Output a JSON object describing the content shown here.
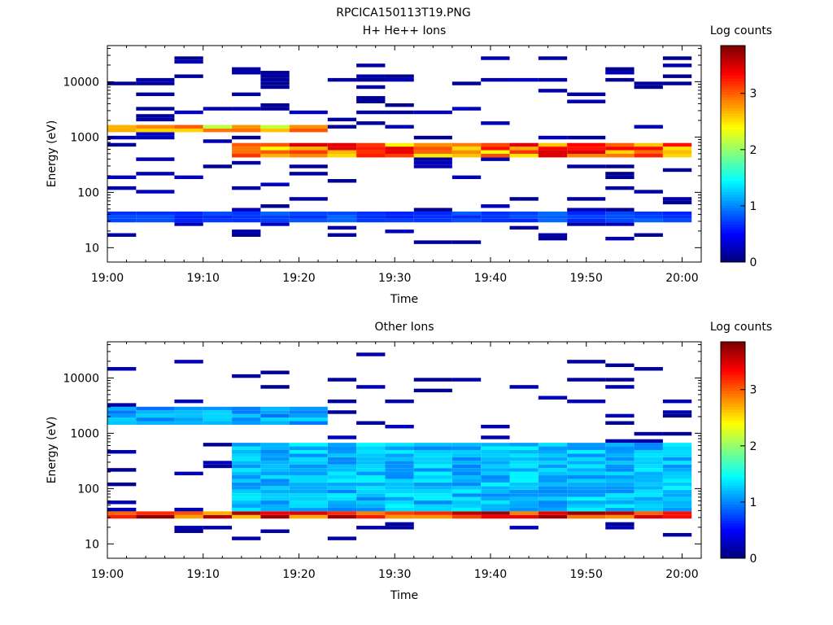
{
  "figure_title": "RPCICA150113T19.PNG",
  "chart_data": [
    {
      "type": "heatmap",
      "title": "H+ He++ Ions",
      "xlabel": "Time",
      "ylabel": "Energy (eV)",
      "x_ticks": [
        "19:00",
        "19:10",
        "19:20",
        "19:30",
        "19:40",
        "19:50",
        "20:00"
      ],
      "x_range": [
        "19:00",
        "20:02"
      ],
      "y_scale": "log",
      "y_ticks": [
        10,
        100,
        1000,
        10000
      ],
      "y_tick_labels": [
        "10",
        "100",
        "1000",
        "10000"
      ],
      "ylim": [
        5.5,
        45000
      ],
      "colorbar": {
        "label": "Log counts",
        "range": [
          0,
          3.85
        ],
        "ticks": [
          0,
          1,
          2,
          3
        ],
        "tick_labels": [
          "0",
          "1",
          "2",
          "3"
        ]
      },
      "time_bins": [
        "19:00",
        "19:03",
        "19:07",
        "19:10",
        "19:13",
        "19:16",
        "19:19",
        "19:23",
        "19:26",
        "19:29",
        "19:32",
        "19:36",
        "19:39",
        "19:42",
        "19:45",
        "19:48",
        "19:52",
        "19:55",
        "19:58"
      ],
      "dominant_features": [
        {
          "energy_eV": [
            1300,
            1600
          ],
          "time": [
            "19:00",
            "19:23"
          ],
          "log_counts": 2.8
        },
        {
          "energy_eV": [
            450,
            750
          ],
          "time": [
            "19:13",
            "20:01"
          ],
          "log_counts": 3.2
        },
        {
          "energy_eV": [
            30,
            42
          ],
          "time": [
            "19:00",
            "20:01"
          ],
          "log_counts": 0.8
        }
      ]
    },
    {
      "type": "heatmap",
      "title": "Other Ions",
      "xlabel": "Time",
      "ylabel": "Energy (eV)",
      "x_ticks": [
        "19:00",
        "19:10",
        "19:20",
        "19:30",
        "19:40",
        "19:50",
        "20:00"
      ],
      "x_range": [
        "19:00",
        "20:02"
      ],
      "y_scale": "log",
      "y_ticks": [
        10,
        100,
        1000,
        10000
      ],
      "y_tick_labels": [
        "10",
        "100",
        "1000",
        "10000"
      ],
      "ylim": [
        5.5,
        45000
      ],
      "colorbar": {
        "label": "Log counts",
        "range": [
          0,
          3.85
        ],
        "ticks": [
          0,
          1,
          2,
          3
        ],
        "tick_labels": [
          "0",
          "1",
          "2",
          "3"
        ]
      },
      "time_bins": [
        "19:00",
        "19:03",
        "19:07",
        "19:10",
        "19:13",
        "19:16",
        "19:19",
        "19:23",
        "19:26",
        "19:29",
        "19:32",
        "19:36",
        "19:39",
        "19:42",
        "19:45",
        "19:48",
        "19:52",
        "19:55",
        "19:58"
      ],
      "dominant_features": [
        {
          "energy_eV": [
            28,
            40
          ],
          "time": [
            "19:00",
            "20:01"
          ],
          "log_counts": 3.5
        },
        {
          "energy_eV": [
            40,
            700
          ],
          "time": [
            "19:13",
            "20:01"
          ],
          "log_counts": 1.3
        },
        {
          "energy_eV": [
            1400,
            3000
          ],
          "time": [
            "19:00",
            "19:23"
          ],
          "log_counts": 1.2
        }
      ]
    }
  ]
}
